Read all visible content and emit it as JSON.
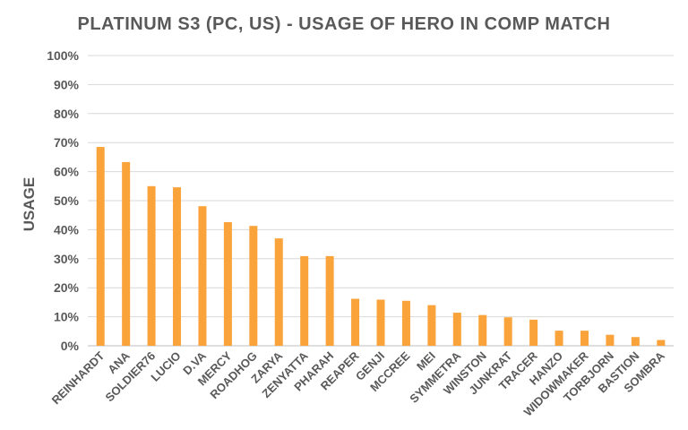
{
  "chart_data": {
    "type": "bar",
    "title": "PLATINUM S3 (PC, US) - USAGE OF HERO IN COMP MATCH",
    "xlabel": "",
    "ylabel": "USAGE",
    "ylim": [
      0,
      100
    ],
    "yticks": [
      "0%",
      "10%",
      "20%",
      "30%",
      "40%",
      "50%",
      "60%",
      "70%",
      "80%",
      "90%",
      "100%"
    ],
    "grid": true,
    "bar_color": "#F9A33A",
    "categories": [
      "REINHARDT",
      "ANA",
      "SOLDIER76",
      "LUCIO",
      "D.VA",
      "MERCY",
      "ROADHOG",
      "ZARYA",
      "ZENYATTA",
      "PHARAH",
      "REAPER",
      "GENJI",
      "MCCREE",
      "MEI",
      "SYMMETRA",
      "WINSTON",
      "JUNKRAT",
      "TRACER",
      "HANZO",
      "WIDOWMAKER",
      "TORBJORN",
      "BASTION",
      "SOMBRA"
    ],
    "values": [
      68.5,
      63.3,
      55.0,
      54.6,
      48.1,
      42.6,
      41.3,
      37.0,
      30.9,
      30.9,
      16.2,
      15.9,
      15.5,
      14.0,
      11.4,
      10.6,
      9.8,
      9.0,
      5.2,
      5.2,
      3.8,
      3.0,
      2.0
    ]
  }
}
